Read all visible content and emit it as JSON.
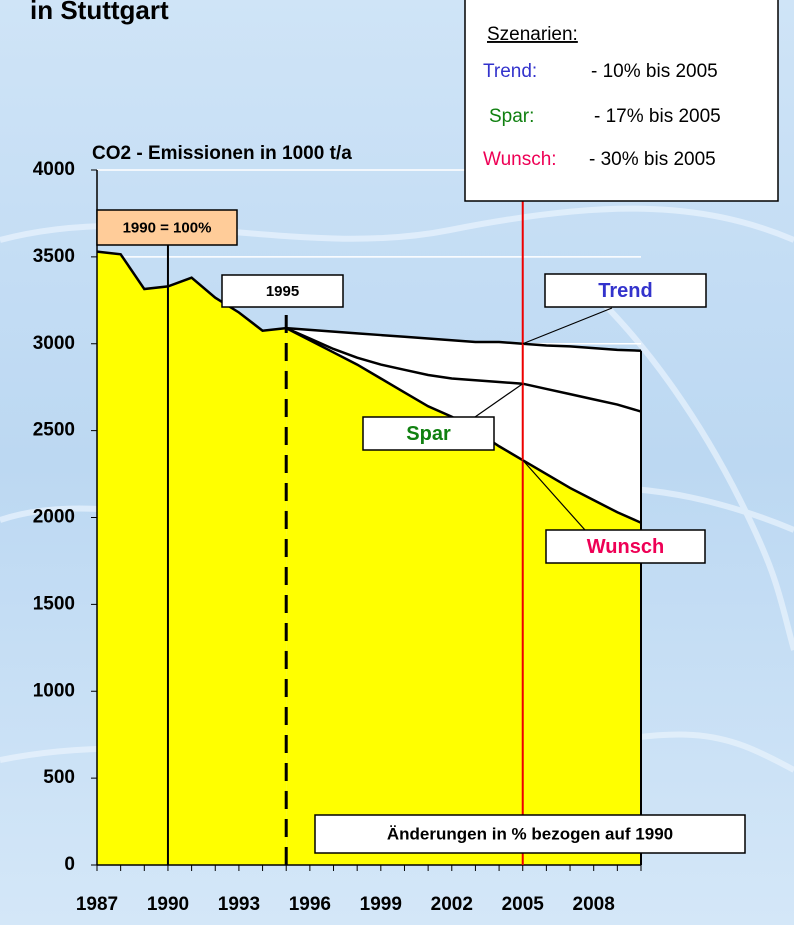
{
  "chart_data": {
    "type": "line",
    "title": "in Stuttgart",
    "y_label": "CO2 - Emissionen in 1000 t/a",
    "x": [
      1987,
      1988,
      1989,
      1990,
      1991,
      1992,
      1993,
      1994,
      1995,
      1996,
      1997,
      1998,
      1999,
      2000,
      2001,
      2002,
      2003,
      2004,
      2005,
      2006,
      2007,
      2008,
      2009,
      2010
    ],
    "xlim": [
      1987,
      2010
    ],
    "xticks": [
      1987,
      1990,
      1993,
      1996,
      1999,
      2002,
      2005,
      2008
    ],
    "ylim": [
      0,
      4000
    ],
    "yticks": [
      0,
      500,
      1000,
      1500,
      2000,
      2500,
      3000,
      3500,
      4000
    ],
    "grid": true,
    "series": [
      {
        "fill": "#ffff00",
        "values": [
          3530,
          3515,
          3315,
          3330,
          3380,
          3265,
          3180,
          3075,
          3090,
          null,
          null,
          null,
          null,
          null,
          null,
          null,
          null,
          null,
          null,
          null,
          null,
          null,
          null,
          null
        ]
      },
      {
        "name": "Trend",
        "color": "#3333cc",
        "legend_label": "Trend:",
        "scenario": "- 10% bis 2005",
        "values": [
          null,
          null,
          null,
          null,
          null,
          null,
          null,
          null,
          3090,
          3080,
          3070,
          3060,
          3050,
          3040,
          3030,
          3020,
          3010,
          3010,
          3000,
          2990,
          2985,
          2975,
          2965,
          2960
        ]
      },
      {
        "name": "Spar",
        "color": "#108010",
        "legend_label": "Spar:",
        "scenario": "- 17% bis 2005",
        "values": [
          null,
          null,
          null,
          null,
          null,
          null,
          null,
          null,
          3090,
          3030,
          2970,
          2920,
          2880,
          2850,
          2820,
          2800,
          2790,
          2780,
          2770,
          2740,
          2710,
          2680,
          2650,
          2610
        ]
      },
      {
        "name": "Wunsch",
        "color": "#ee0055",
        "fill": "#ffff00",
        "legend_label": "Wunsch:",
        "scenario": "- 30% bis 2005",
        "values": [
          null,
          null,
          null,
          null,
          null,
          null,
          null,
          null,
          3090,
          3020,
          2950,
          2880,
          2800,
          2720,
          2640,
          2580,
          2500,
          2410,
          2330,
          2250,
          2170,
          2100,
          2030,
          1970
        ]
      }
    ],
    "legend_title": "Szenarien:",
    "markers": [
      {
        "x": 1990,
        "label": "1990 = 100%",
        "color": "#000000",
        "style": "solid"
      },
      {
        "x": 1995,
        "label": "1995",
        "color": "#000000",
        "style": "dashed"
      },
      {
        "x": 2005,
        "color": "#ee0000",
        "style": "solid"
      }
    ],
    "note": "Änderungen in % bezogen auf 1990"
  }
}
